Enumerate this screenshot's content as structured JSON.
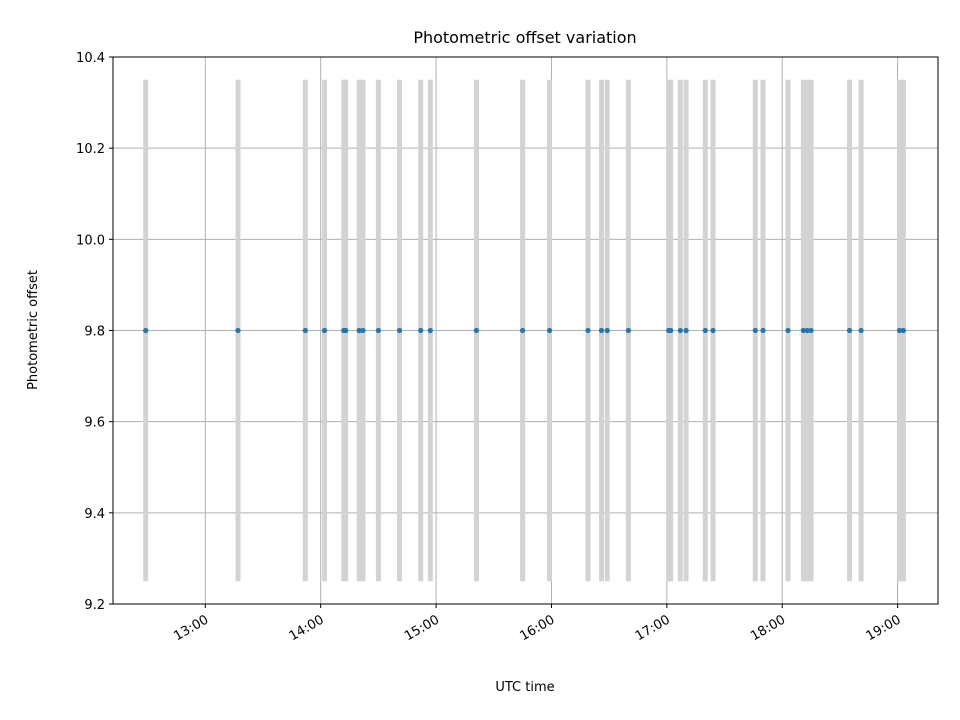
{
  "chart_data": {
    "type": "scatter",
    "title": "Photometric offset variation",
    "xlabel": "UTC time",
    "ylabel": "Photometric offset",
    "ylim": [
      9.2,
      10.4
    ],
    "yticks": [
      "9.2",
      "9.4",
      "9.6",
      "9.8",
      "10.0",
      "10.2",
      "10.4"
    ],
    "xlim": [
      "12:12",
      "19:21"
    ],
    "xticks": [
      "13:00",
      "14:00",
      "15:00",
      "16:00",
      "17:00",
      "18:00",
      "19:00"
    ],
    "grid": true,
    "errorbar_range": [
      9.25,
      10.35
    ],
    "errorbar_color": "#d3d3d3",
    "point_color": "#1f77b4",
    "series": [
      {
        "x": [
          "12:29",
          "13:17",
          "13:52",
          "14:02",
          "14:12",
          "14:13",
          "14:20",
          "14:22",
          "14:30",
          "14:41",
          "14:52",
          "14:57",
          "15:21",
          "15:45",
          "15:59",
          "16:19",
          "16:26",
          "16:29",
          "16:40",
          "17:01",
          "17:02",
          "17:07",
          "17:10",
          "17:20",
          "17:24",
          "17:46",
          "17:50",
          "18:03",
          "18:11",
          "18:13",
          "18:15",
          "18:35",
          "18:41",
          "19:01",
          "19:03"
        ],
        "y": [
          9.8,
          9.8,
          9.8,
          9.8,
          9.8,
          9.8,
          9.8,
          9.8,
          9.8,
          9.8,
          9.8,
          9.8,
          9.8,
          9.8,
          9.8,
          9.8,
          9.8,
          9.8,
          9.8,
          9.8,
          9.8,
          9.8,
          9.8,
          9.8,
          9.8,
          9.8,
          9.8,
          9.8,
          9.8,
          9.8,
          9.8,
          9.8,
          9.8,
          9.8,
          9.8
        ]
      }
    ]
  }
}
